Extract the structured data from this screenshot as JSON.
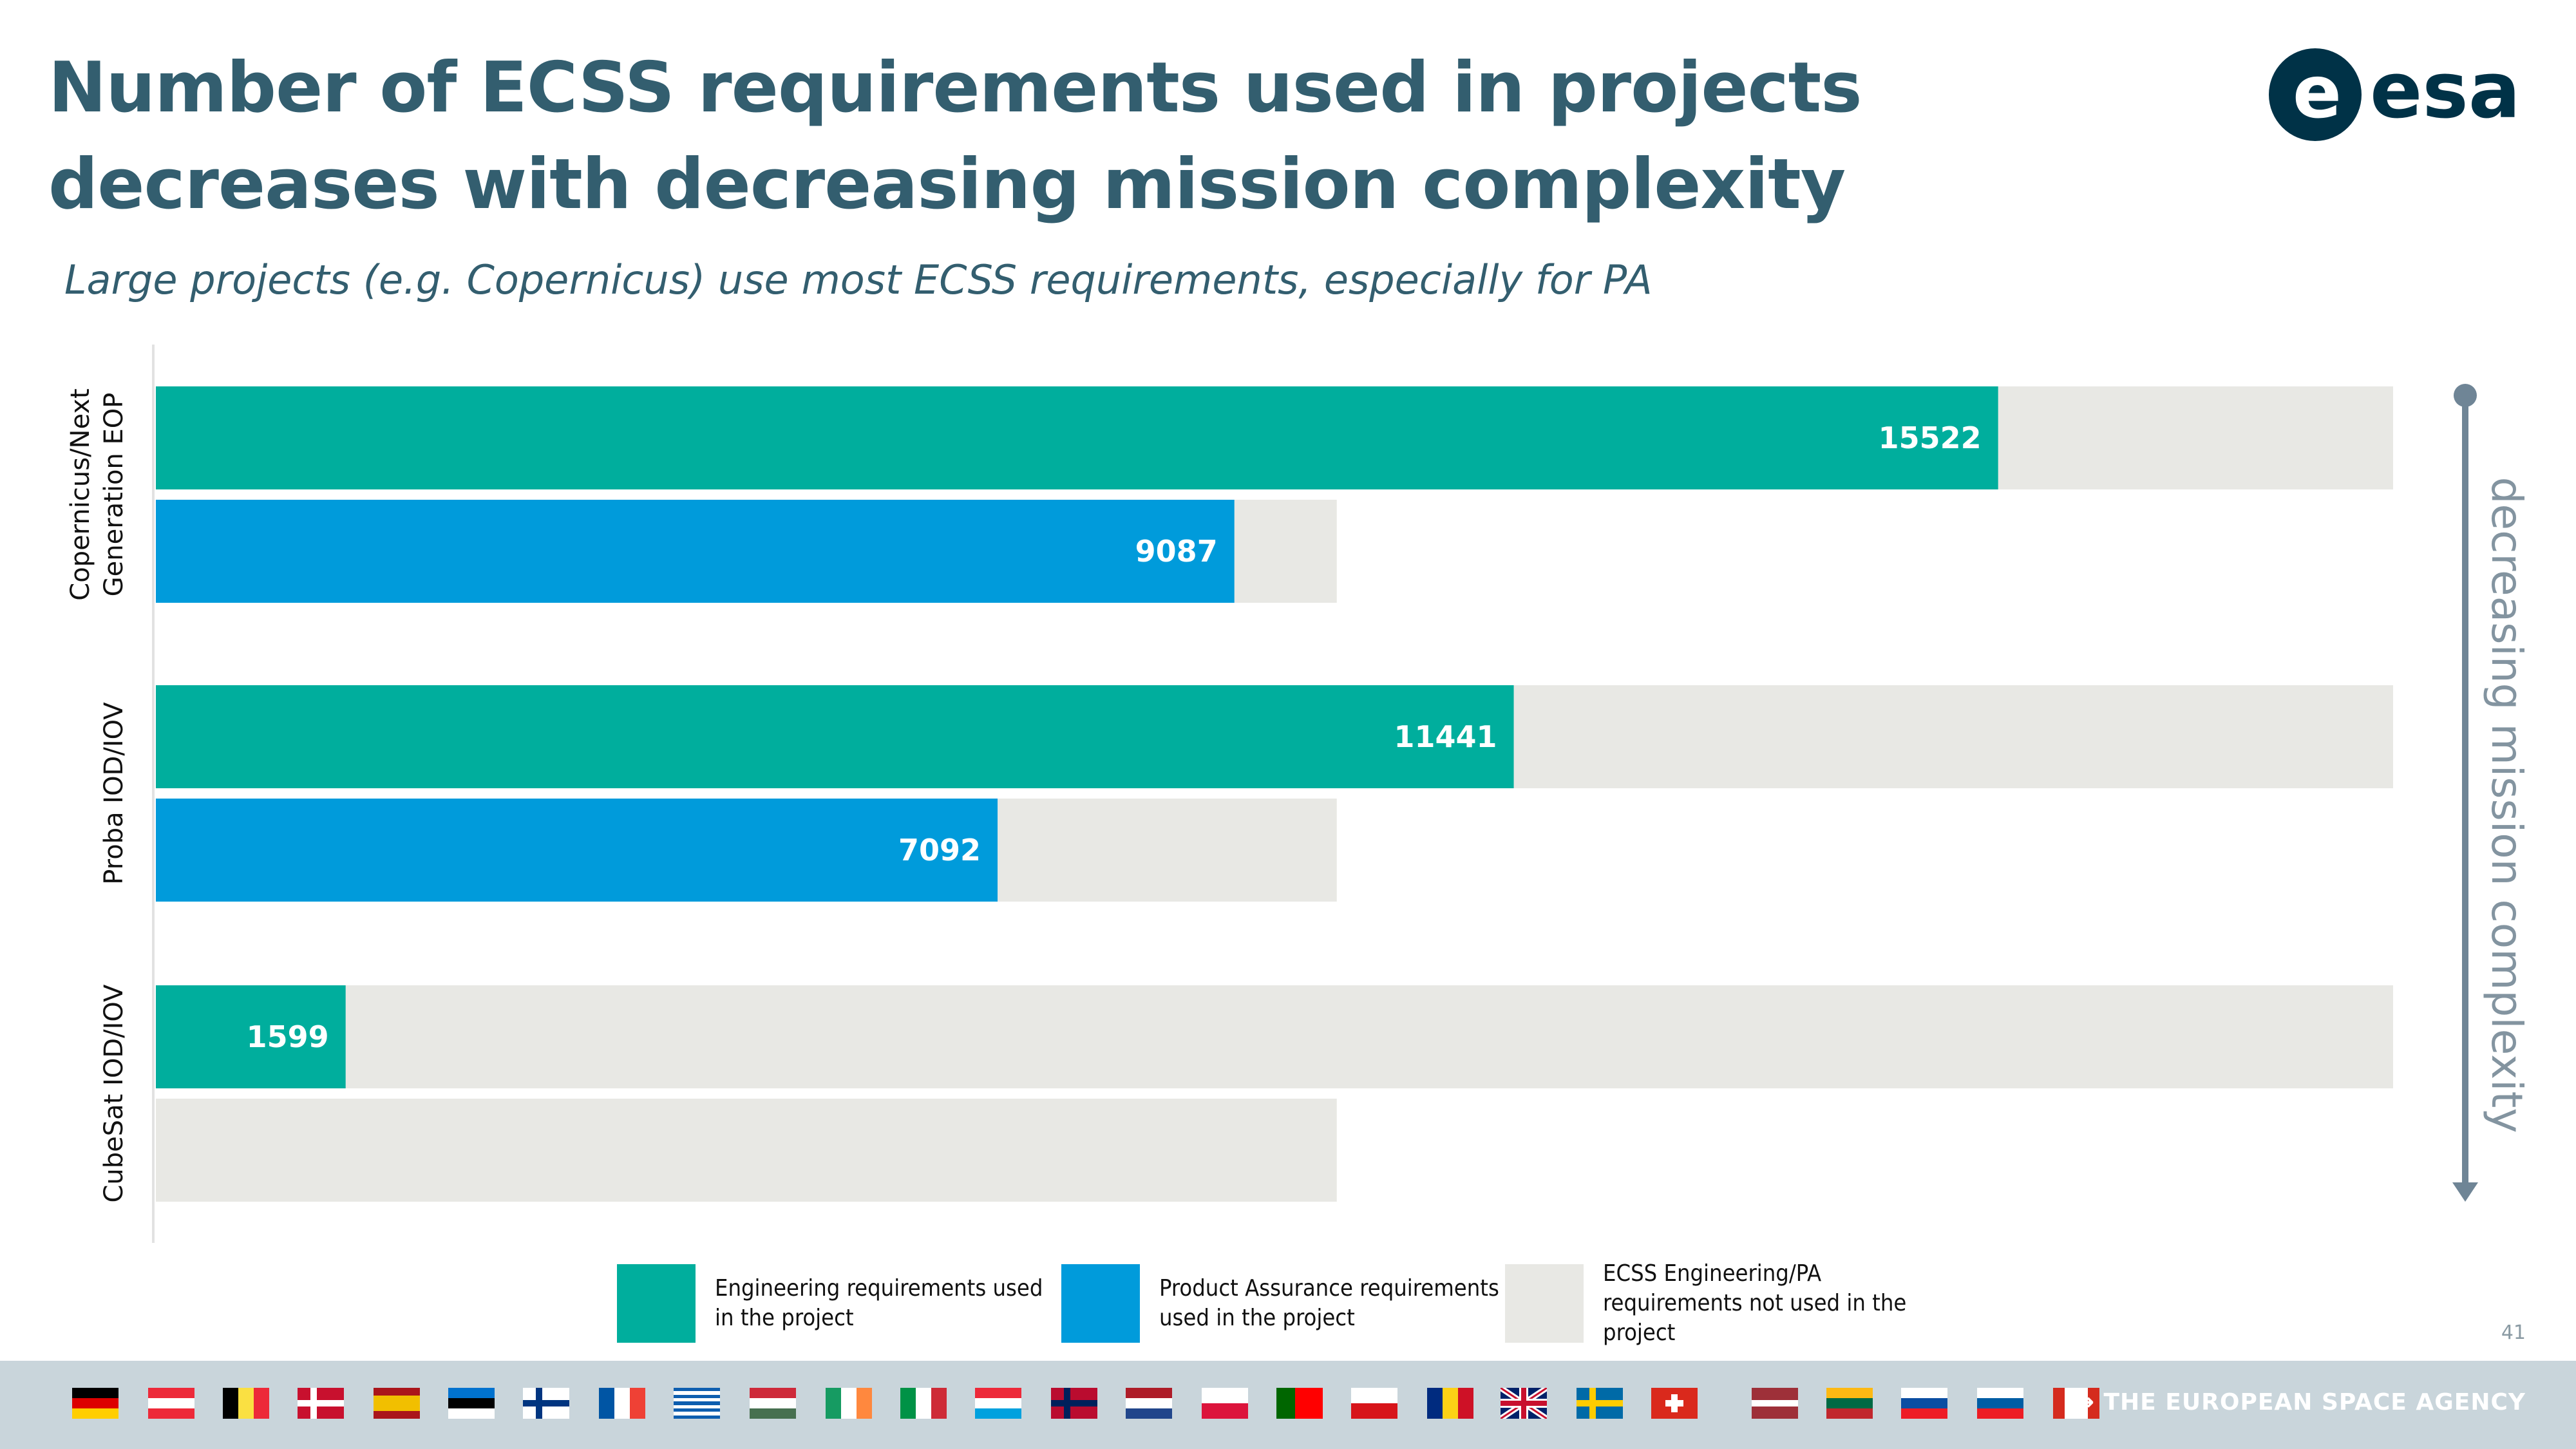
{
  "header": {
    "title": "Number of ECSS requirements used in projects decreases with decreasing mission complexity",
    "subtitle": "Large projects (e.g. Copernicus) use most ECSS requirements, especially for PA",
    "logo_text": "esa"
  },
  "chart_data": {
    "type": "bar",
    "orientation": "horizontal",
    "categories": [
      "Copernicus/Next Generation EOP",
      "Proba IOD/IOV",
      "CubeSat IOD/IOV"
    ],
    "series": [
      {
        "name": "Engineering requirements used in the project",
        "color": "#00ae9d",
        "values": [
          15522,
          11441,
          1599
        ]
      },
      {
        "name": "Product Assurance requirements used in the project",
        "color": "#009bdb",
        "values": [
          9087,
          7092,
          0
        ]
      }
    ],
    "totals": {
      "engineering": 18850,
      "product_assurance": 9950
    },
    "not_used_label": "ECSS Engineering/PA requirements not used in the project",
    "not_used_color": "#e8e8e4",
    "side_label": "decreasing mission complexity",
    "xlim": [
      0,
      18850
    ],
    "grid": false
  },
  "legend": [
    {
      "label": "Engineering requirements used in the project",
      "color": "#00ae9d"
    },
    {
      "label": "Product Assurance requirements used in the project",
      "color": "#009bdb"
    },
    {
      "label": "ECSS Engineering/PA requirements not used in the project",
      "color": "#e8e8e4"
    }
  ],
  "page_number": "41",
  "footer": {
    "agency": "→ THE EUROPEAN SPACE AGENCY",
    "flags": [
      "germany",
      "austria",
      "belgium",
      "denmark",
      "spain",
      "estonia",
      "finland",
      "france",
      "greece",
      "hungary",
      "ireland",
      "italy",
      "luxembourg",
      "norway",
      "netherlands",
      "poland",
      "portugal",
      "czechia",
      "romania",
      "united-kingdom",
      "sweden",
      "switzerland",
      "latvia",
      "lithuania",
      "slovakia",
      "slovenia",
      "canada"
    ]
  }
}
